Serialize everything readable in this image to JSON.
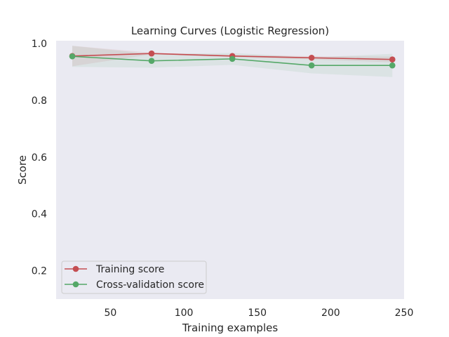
{
  "chart_data": {
    "type": "line",
    "title": "Learning Curves (Logistic Regression)",
    "xlabel": "Training examples",
    "ylabel": "Score",
    "xlim": [
      13,
      250
    ],
    "ylim": [
      0.1,
      1.01
    ],
    "xticks": [
      50,
      100,
      150,
      200,
      250
    ],
    "yticks": [
      0.2,
      0.4,
      0.6,
      0.8,
      1.0
    ],
    "x": [
      24,
      78,
      133,
      187,
      242
    ],
    "series": [
      {
        "name": "Training score",
        "color": "#c44e52",
        "values": [
          0.956,
          0.965,
          0.956,
          0.95,
          0.944
        ],
        "band_low": [
          0.92,
          0.962,
          0.952,
          0.944,
          0.934
        ],
        "band_high": [
          0.992,
          0.968,
          0.96,
          0.956,
          0.954
        ]
      },
      {
        "name": "Cross-validation score",
        "color": "#55a868",
        "values": [
          0.955,
          0.939,
          0.946,
          0.923,
          0.923
        ],
        "band_low": [
          0.918,
          0.915,
          0.925,
          0.895,
          0.882
        ],
        "band_high": [
          0.992,
          0.963,
          0.967,
          0.951,
          0.964
        ]
      }
    ],
    "grid": false,
    "legend_position": "lower-left",
    "background": "#eaeaf2"
  }
}
